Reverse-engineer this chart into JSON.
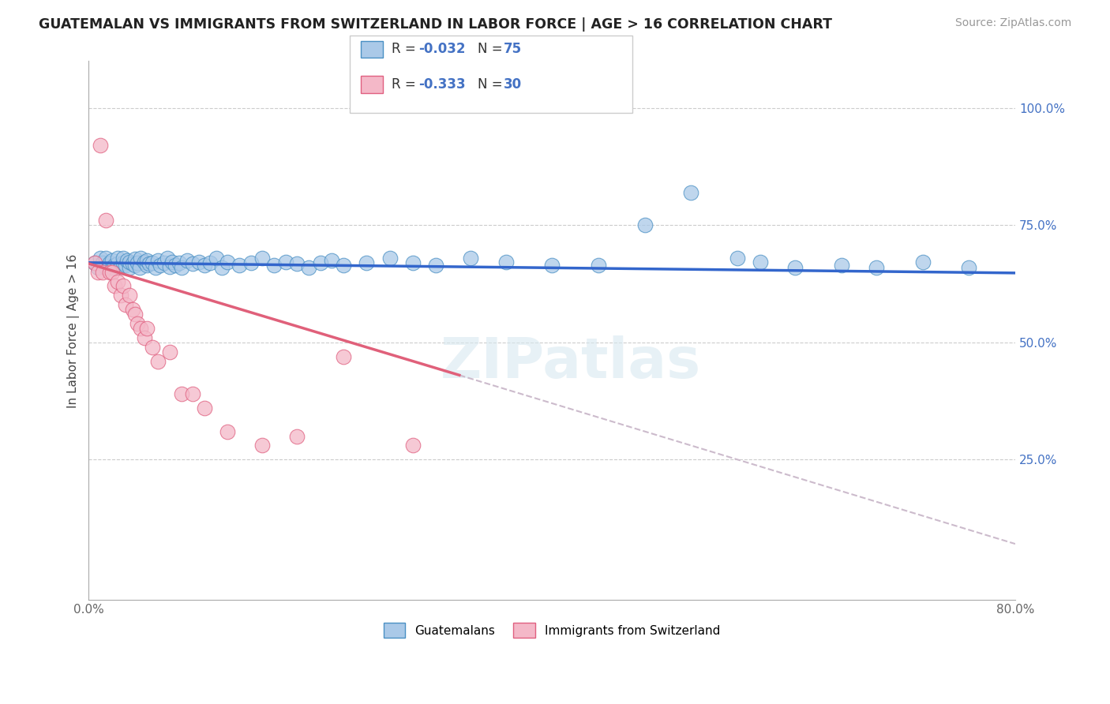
{
  "title": "GUATEMALAN VS IMMIGRANTS FROM SWITZERLAND IN LABOR FORCE | AGE > 16 CORRELATION CHART",
  "source": "Source: ZipAtlas.com",
  "ylabel": "In Labor Force | Age > 16",
  "xlim": [
    0.0,
    0.8
  ],
  "ylim": [
    -0.05,
    1.1
  ],
  "xticks": [
    0.0,
    0.1,
    0.2,
    0.3,
    0.4,
    0.5,
    0.6,
    0.7,
    0.8
  ],
  "xticklabels": [
    "0.0%",
    "",
    "",
    "",
    "",
    "",
    "",
    "",
    "80.0%"
  ],
  "yticks": [
    0.25,
    0.5,
    0.75,
    1.0
  ],
  "yticklabels": [
    "25.0%",
    "50.0%",
    "75.0%",
    "100.0%"
  ],
  "legend_R_blue": "-0.032",
  "legend_N_blue": "75",
  "legend_R_pink": "-0.333",
  "legend_N_pink": "30",
  "blue_color": "#aac9e8",
  "pink_color": "#f4b8c8",
  "blue_edge_color": "#4a90c4",
  "pink_edge_color": "#e06080",
  "blue_line_color": "#3366cc",
  "pink_line_color": "#e0607a",
  "dashed_line_color": "#ccbbcc",
  "watermark_text": "ZIPatlas",
  "blue_scatter_x": [
    0.005,
    0.008,
    0.01,
    0.012,
    0.015,
    0.015,
    0.018,
    0.02,
    0.02,
    0.022,
    0.025,
    0.025,
    0.028,
    0.03,
    0.03,
    0.032,
    0.033,
    0.035,
    0.035,
    0.038,
    0.04,
    0.04,
    0.042,
    0.044,
    0.045,
    0.048,
    0.05,
    0.05,
    0.052,
    0.055,
    0.058,
    0.06,
    0.062,
    0.065,
    0.068,
    0.07,
    0.072,
    0.075,
    0.078,
    0.08,
    0.085,
    0.09,
    0.095,
    0.1,
    0.105,
    0.11,
    0.115,
    0.12,
    0.13,
    0.14,
    0.15,
    0.16,
    0.17,
    0.18,
    0.19,
    0.2,
    0.21,
    0.22,
    0.24,
    0.26,
    0.28,
    0.3,
    0.33,
    0.36,
    0.4,
    0.44,
    0.48,
    0.52,
    0.56,
    0.58,
    0.61,
    0.65,
    0.68,
    0.72,
    0.76
  ],
  "blue_scatter_y": [
    0.67,
    0.66,
    0.68,
    0.67,
    0.66,
    0.68,
    0.67,
    0.66,
    0.675,
    0.665,
    0.668,
    0.68,
    0.662,
    0.67,
    0.68,
    0.665,
    0.675,
    0.66,
    0.672,
    0.668,
    0.665,
    0.678,
    0.67,
    0.66,
    0.68,
    0.672,
    0.665,
    0.675,
    0.668,
    0.67,
    0.66,
    0.675,
    0.665,
    0.67,
    0.68,
    0.662,
    0.672,
    0.665,
    0.67,
    0.66,
    0.675,
    0.668,
    0.672,
    0.665,
    0.67,
    0.68,
    0.66,
    0.672,
    0.665,
    0.67,
    0.68,
    0.665,
    0.672,
    0.668,
    0.66,
    0.67,
    0.675,
    0.665,
    0.67,
    0.68,
    0.67,
    0.665,
    0.68,
    0.672,
    0.665,
    0.665,
    0.75,
    0.82,
    0.68,
    0.672,
    0.66,
    0.665,
    0.66,
    0.672,
    0.66
  ],
  "pink_scatter_x": [
    0.005,
    0.008,
    0.01,
    0.012,
    0.015,
    0.018,
    0.02,
    0.022,
    0.025,
    0.028,
    0.03,
    0.032,
    0.035,
    0.038,
    0.04,
    0.042,
    0.045,
    0.048,
    0.05,
    0.055,
    0.06,
    0.07,
    0.08,
    0.09,
    0.1,
    0.12,
    0.15,
    0.18,
    0.22,
    0.28
  ],
  "pink_scatter_y": [
    0.67,
    0.65,
    0.92,
    0.65,
    0.76,
    0.65,
    0.65,
    0.62,
    0.63,
    0.6,
    0.62,
    0.58,
    0.6,
    0.57,
    0.56,
    0.54,
    0.53,
    0.51,
    0.53,
    0.49,
    0.46,
    0.48,
    0.39,
    0.39,
    0.36,
    0.31,
    0.28,
    0.3,
    0.47,
    0.28
  ],
  "blue_line_x": [
    0.0,
    0.8
  ],
  "blue_line_y": [
    0.67,
    0.648
  ],
  "pink_line_x": [
    0.0,
    0.32
  ],
  "pink_line_y": [
    0.668,
    0.43
  ],
  "dashed_line_x": [
    0.32,
    0.8
  ],
  "dashed_line_y": [
    0.43,
    0.07
  ]
}
